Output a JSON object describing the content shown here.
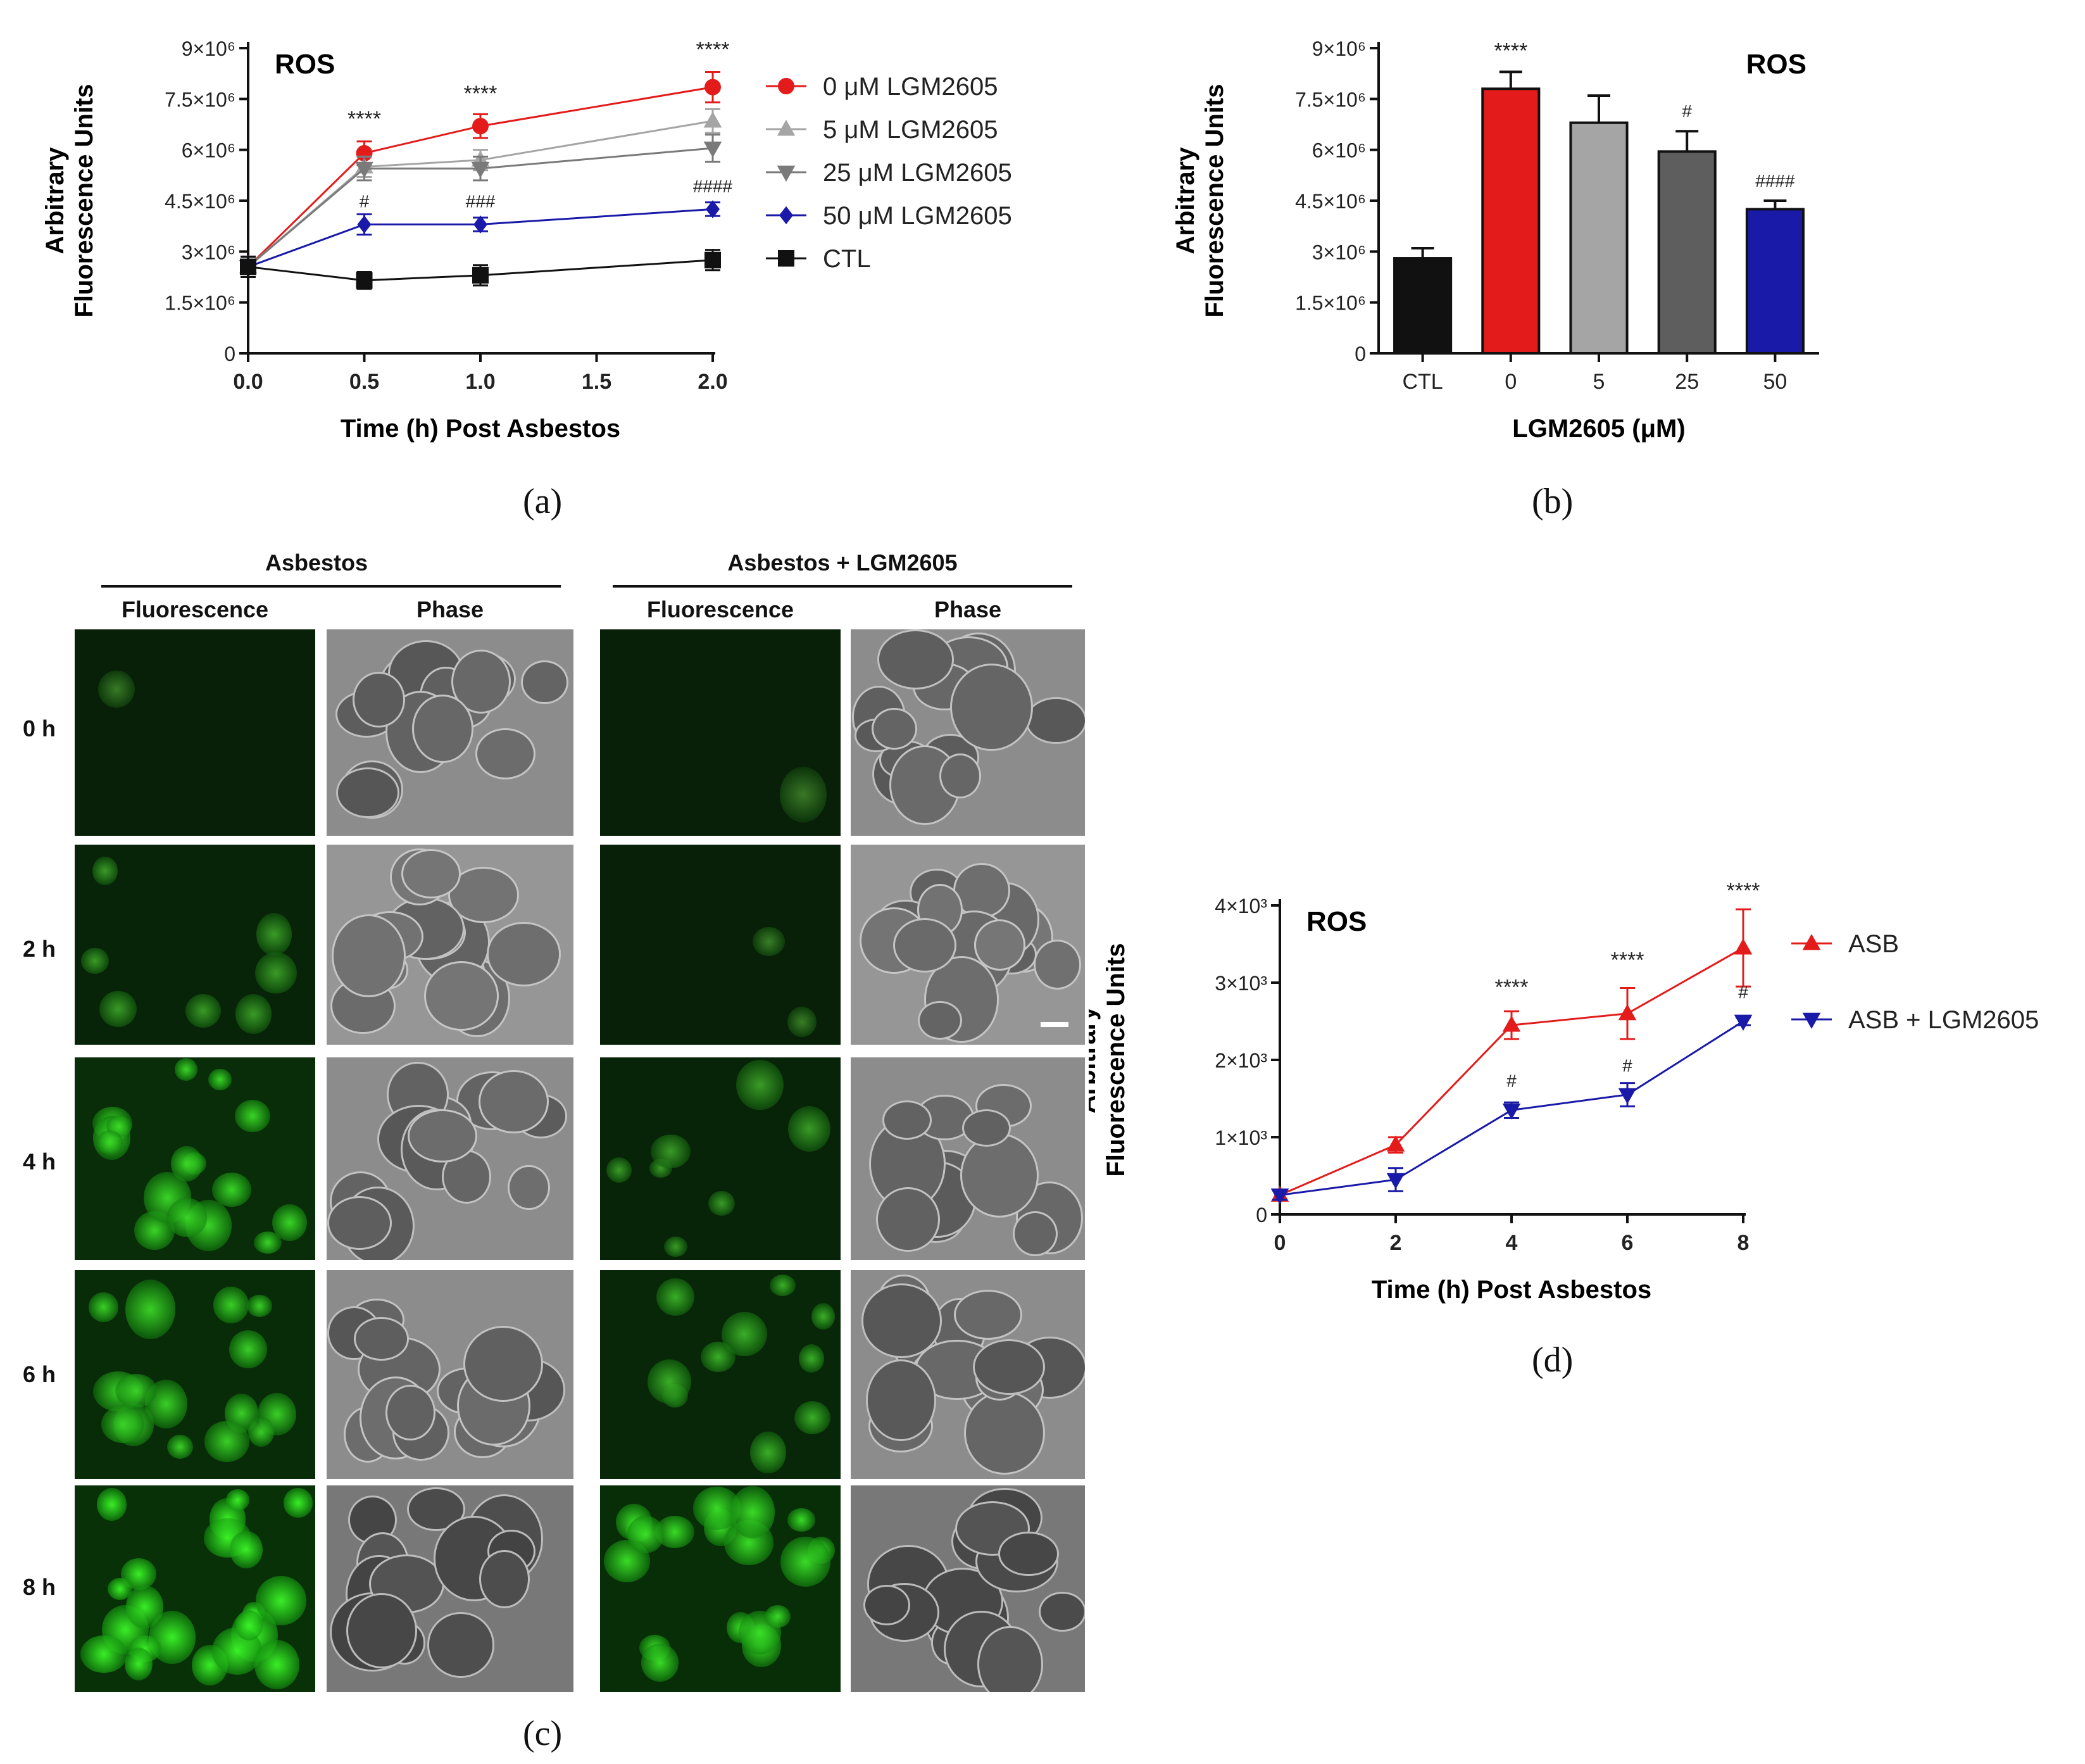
{
  "colors": {
    "red": "#e31b1b",
    "light_gray": "#a5a5a5",
    "dark_gray": "#7a7a7a",
    "bar_dark_gray": "#5e5e5e",
    "blue": "#1a1aa8",
    "black": "#111111"
  },
  "panel_labels": {
    "a": "(a)",
    "b": "(b)",
    "c": "(c)",
    "d": "(d)"
  },
  "micrographs": {
    "group_asbestos": "Asbestos",
    "group_asbestos_lgm": "Asbestos + LGM2605",
    "col_fluorescence": "Fluorescence",
    "col_phase": "Phase",
    "rows": [
      "0 h",
      "2 h",
      "4 h",
      "6 h",
      "8 h"
    ],
    "fluorescence_intensity_asbestos": [
      0.05,
      0.3,
      0.75,
      0.7,
      0.95
    ],
    "fluorescence_intensity_lgm": [
      0.03,
      0.08,
      0.3,
      0.45,
      0.8
    ]
  },
  "chart_data": [
    {
      "id": "a",
      "type": "line",
      "title": "ROS",
      "xlabel": "Time (h) Post Asbestos",
      "ylabel_line1": "Arbitrary",
      "ylabel_line2": "Fluorescence Units",
      "xlim": [
        0,
        2
      ],
      "ylim": [
        0,
        9000000
      ],
      "xticks": [
        0,
        0.5,
        1,
        1.5,
        2
      ],
      "xtick_labels": [
        "0.0",
        "0.5",
        "1.0",
        "1.5",
        "2.0"
      ],
      "yticks": [
        0,
        1500000,
        3000000,
        4500000,
        6000000,
        7500000,
        9000000
      ],
      "ytick_labels": [
        "0",
        "1.5×10⁶",
        "3×10⁶",
        "4.5×10⁶",
        "6×10⁶",
        "7.5×10⁶",
        "9×10⁶"
      ],
      "legend_position": "right",
      "x": [
        0,
        0.5,
        1,
        2
      ],
      "series": [
        {
          "name": "0 μM LGM2605",
          "marker": "circle",
          "color": "#e31b1b",
          "values": [
            2550000,
            5900000,
            6700000,
            7850000
          ],
          "errors": [
            300000,
            350000,
            350000,
            450000
          ]
        },
        {
          "name": "5 μM LGM2605",
          "marker": "triangle-up",
          "color": "#a5a5a5",
          "values": [
            2550000,
            5500000,
            5700000,
            6850000
          ],
          "errors": [
            300000,
            300000,
            300000,
            350000
          ]
        },
        {
          "name": "25 μM LGM2605",
          "marker": "triangle-down",
          "color": "#7a7a7a",
          "values": [
            2550000,
            5450000,
            5450000,
            6050000
          ],
          "errors": [
            300000,
            350000,
            350000,
            400000
          ]
        },
        {
          "name": "50 μM LGM2605",
          "marker": "diamond",
          "color": "#1a1aa8",
          "values": [
            2550000,
            3800000,
            3800000,
            4250000
          ],
          "errors": [
            300000,
            300000,
            200000,
            200000
          ]
        },
        {
          "name": "CTL",
          "marker": "square",
          "color": "#111111",
          "values": [
            2550000,
            2150000,
            2300000,
            2750000
          ],
          "errors": [
            300000,
            250000,
            300000,
            300000
          ]
        }
      ],
      "annotations": [
        {
          "text": "****",
          "x": 0.5,
          "y": 6700000
        },
        {
          "text": "****",
          "x": 1,
          "y": 7450000
        },
        {
          "text": "****",
          "x": 2,
          "y": 8750000
        },
        {
          "text": "#",
          "x": 0.5,
          "y": 4300000
        },
        {
          "text": "###",
          "x": 1,
          "y": 4300000
        },
        {
          "text": "####",
          "x": 2,
          "y": 4750000
        }
      ]
    },
    {
      "id": "b",
      "type": "bar",
      "title": "ROS",
      "xlabel": "LGM2605 (μM)",
      "ylabel_line1": "Arbitrary",
      "ylabel_line2": "Fluorescence Units",
      "categories": [
        "CTL",
        "0",
        "5",
        "25",
        "50"
      ],
      "values": [
        2800000,
        7800000,
        6800000,
        5950000,
        4250000
      ],
      "errors": [
        300000,
        500000,
        800000,
        600000,
        250000
      ],
      "bar_colors": [
        "#111111",
        "#e31b1b",
        "#a5a5a5",
        "#5e5e5e",
        "#1a1aa8"
      ],
      "ylim": [
        0,
        9000000
      ],
      "yticks": [
        0,
        1500000,
        3000000,
        4500000,
        6000000,
        7500000,
        9000000
      ],
      "ytick_labels": [
        "0",
        "1.5×10⁶",
        "3×10⁶",
        "4.5×10⁶",
        "6×10⁶",
        "7.5×10⁶",
        "9×10⁶"
      ],
      "annotations": [
        {
          "text": "****",
          "category": "0"
        },
        {
          "text": "#",
          "category": "25"
        },
        {
          "text": "####",
          "category": "50"
        }
      ]
    },
    {
      "id": "d",
      "type": "line",
      "title": "ROS",
      "xlabel": "Time (h) Post Asbestos",
      "ylabel_line1": "Arbitrary",
      "ylabel_line2": "Fluorescence Units",
      "xlim": [
        0,
        8
      ],
      "ylim": [
        0,
        4000
      ],
      "xticks": [
        0,
        2,
        4,
        6,
        8
      ],
      "xtick_labels": [
        "0",
        "2",
        "4",
        "6",
        "8"
      ],
      "yticks": [
        0,
        1000,
        2000,
        3000,
        4000
      ],
      "ytick_labels": [
        "0",
        "1×10³",
        "2×10³",
        "3×10³",
        "4×10³"
      ],
      "legend_position": "right",
      "x": [
        0,
        2,
        4,
        6,
        8
      ],
      "series": [
        {
          "name": "ASB",
          "marker": "triangle-up",
          "color": "#e31b1b",
          "values": [
            250,
            900,
            2450,
            2600,
            3450
          ],
          "errors": [
            60,
            100,
            180,
            330,
            500
          ]
        },
        {
          "name": "ASB + LGM2605",
          "marker": "triangle-down",
          "color": "#1a1aa8",
          "values": [
            250,
            450,
            1350,
            1550,
            2500
          ],
          "errors": [
            60,
            150,
            100,
            150,
            50
          ]
        }
      ],
      "annotations": [
        {
          "text": "****",
          "x": 4,
          "y": 2850
        },
        {
          "text": "****",
          "x": 6,
          "y": 3200
        },
        {
          "text": "****",
          "x": 8,
          "y": 4100
        },
        {
          "text": "#",
          "x": 4,
          "y": 1650
        },
        {
          "text": "#",
          "x": 6,
          "y": 1850
        },
        {
          "text": "#",
          "x": 8,
          "y": 2800
        }
      ]
    }
  ]
}
